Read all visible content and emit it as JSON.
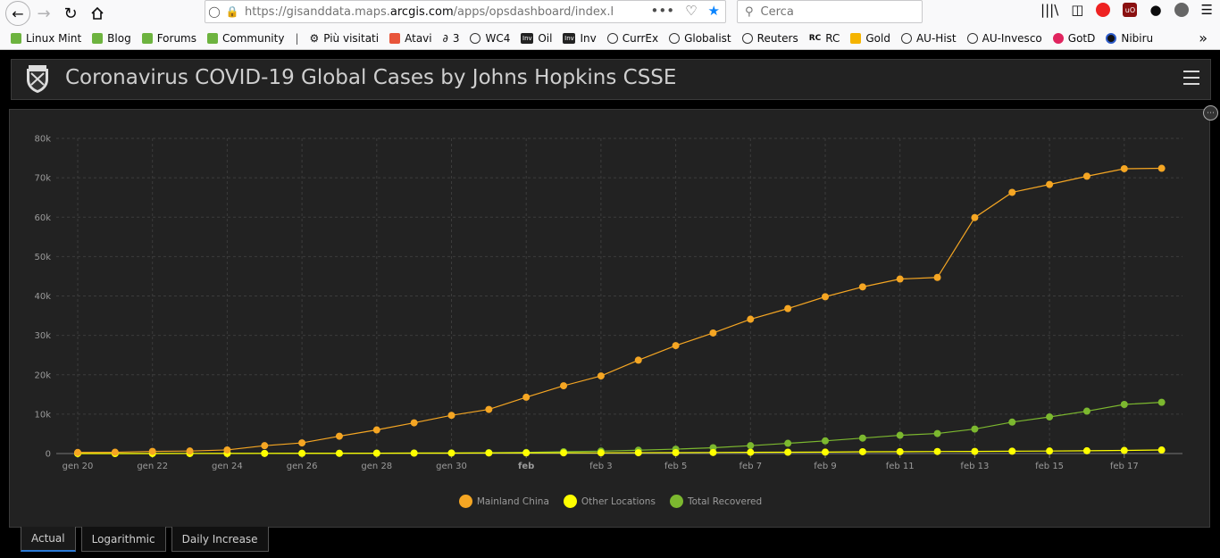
{
  "browser": {
    "url_prefix": "https://gisanddata.maps.",
    "url_domain": "arcgis.com",
    "url_suffix": "/apps/opsdashboard/index.html#/bc",
    "more_dots": "•••",
    "search_placeholder": "Cerca",
    "bookmarks": [
      {
        "label": "Linux Mint",
        "icon": "mint"
      },
      {
        "label": "Blog",
        "icon": "mint"
      },
      {
        "label": "Forums",
        "icon": "mint"
      },
      {
        "label": "Community",
        "icon": "mint"
      },
      {
        "label": "Più visitati",
        "icon": "gear"
      },
      {
        "label": "Atavi",
        "icon": "shield"
      },
      {
        "label": "3",
        "icon": "three"
      },
      {
        "label": "WC4",
        "icon": "globe"
      },
      {
        "label": "Oil",
        "icon": "inv"
      },
      {
        "label": "Inv",
        "icon": "inv"
      },
      {
        "label": "CurrEx",
        "icon": "globe"
      },
      {
        "label": "Globalist",
        "icon": "globe"
      },
      {
        "label": "Reuters",
        "icon": "globe"
      },
      {
        "label": "RC",
        "icon": "rc"
      },
      {
        "label": "Gold",
        "icon": "gold"
      },
      {
        "label": "AU-Hist",
        "icon": "globe"
      },
      {
        "label": "AU-Invesco",
        "icon": "globe"
      },
      {
        "label": "GotD",
        "icon": "gotd"
      },
      {
        "label": "Nibiru",
        "icon": "ring"
      }
    ]
  },
  "dashboard": {
    "title": "Coronavirus COVID-19 Global Cases by Johns Hopkins CSSE",
    "tabs": [
      {
        "label": "Actual",
        "active": true
      },
      {
        "label": "Logarithmic",
        "active": false
      },
      {
        "label": "Daily Increase",
        "active": false
      }
    ]
  },
  "chart_data": {
    "type": "line",
    "title": "",
    "xlabel": "",
    "ylabel": "",
    "ylim": [
      0,
      80000
    ],
    "y_ticks": [
      "0",
      "10k",
      "20k",
      "30k",
      "40k",
      "50k",
      "60k",
      "70k",
      "80k"
    ],
    "x_tick_labels": [
      "gen 20",
      "gen 22",
      "gen 24",
      "gen 26",
      "gen 28",
      "gen 30",
      "feb",
      "feb 3",
      "feb 5",
      "feb 7",
      "feb 9",
      "feb 11",
      "feb 13",
      "feb 15",
      "feb 17"
    ],
    "x_bold_label": "feb",
    "x": [
      "2020-01-20",
      "2020-01-21",
      "2020-01-22",
      "2020-01-23",
      "2020-01-24",
      "2020-01-25",
      "2020-01-26",
      "2020-01-27",
      "2020-01-28",
      "2020-01-29",
      "2020-01-30",
      "2020-01-31",
      "2020-02-01",
      "2020-02-02",
      "2020-02-03",
      "2020-02-04",
      "2020-02-05",
      "2020-02-06",
      "2020-02-07",
      "2020-02-08",
      "2020-02-09",
      "2020-02-10",
      "2020-02-11",
      "2020-02-12",
      "2020-02-13",
      "2020-02-14",
      "2020-02-15",
      "2020-02-16",
      "2020-02-17",
      "2020-02-18"
    ],
    "grid": true,
    "legend_position": "bottom-center",
    "series": [
      {
        "name": "Mainland China",
        "color": "#f5a623",
        "values": [
          278,
          326,
          547,
          639,
          916,
          2000,
          2700,
          4400,
          6000,
          7800,
          9700,
          11200,
          14300,
          17200,
          19700,
          23700,
          27400,
          30600,
          34100,
          36800,
          39800,
          42300,
          44300,
          44700,
          59900,
          66300,
          68300,
          70400,
          72300,
          72400
        ]
      },
      {
        "name": "Other Locations",
        "color": "#ffff00",
        "values": [
          4,
          6,
          8,
          14,
          25,
          40,
          57,
          64,
          87,
          105,
          118,
          153,
          173,
          183,
          188,
          212,
          227,
          265,
          317,
          343,
          361,
          457,
          476,
          523,
          538,
          593,
          639,
          702,
          785,
          900
        ]
      },
      {
        "name": "Total Recovered",
        "color": "#7cb82f",
        "values": [
          0,
          0,
          28,
          30,
          36,
          39,
          49,
          58,
          101,
          120,
          135,
          214,
          275,
          463,
          614,
          843,
          1115,
          1477,
          1999,
          2596,
          3219,
          3918,
          4636,
          5082,
          6217,
          7977,
          9298,
          10755,
          12462,
          13000
        ]
      }
    ]
  }
}
